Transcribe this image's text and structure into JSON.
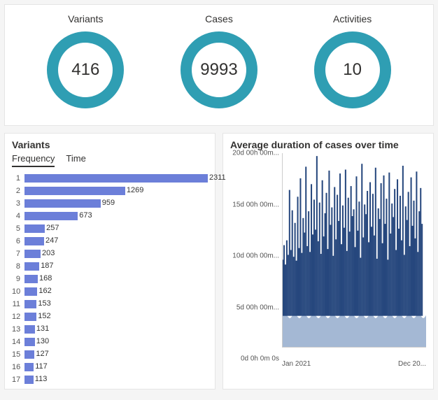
{
  "kpis": [
    {
      "label": "Variants",
      "value": "416",
      "ring_color": "#2f9eb3",
      "ring_width": 16
    },
    {
      "label": "Cases",
      "value": "9993",
      "ring_color": "#2f9eb3",
      "ring_width": 16
    },
    {
      "label": "Activities",
      "value": "10",
      "ring_color": "#2f9eb3",
      "ring_width": 16
    }
  ],
  "variants_panel": {
    "title": "Variants",
    "tabs": [
      {
        "label": "Frequency",
        "active": true
      },
      {
        "label": "Time",
        "active": false
      }
    ],
    "bar_color": "#6c7fd9",
    "max_value": 2311,
    "rows": [
      {
        "idx": "1",
        "value": 2311
      },
      {
        "idx": "2",
        "value": 1269
      },
      {
        "idx": "3",
        "value": 959
      },
      {
        "idx": "4",
        "value": 673
      },
      {
        "idx": "5",
        "value": 257
      },
      {
        "idx": "6",
        "value": 247
      },
      {
        "idx": "7",
        "value": 203
      },
      {
        "idx": "8",
        "value": 187
      },
      {
        "idx": "9",
        "value": 168
      },
      {
        "idx": "10",
        "value": 162
      },
      {
        "idx": "11",
        "value": 153
      },
      {
        "idx": "12",
        "value": 152
      },
      {
        "idx": "13",
        "value": 131
      },
      {
        "idx": "14",
        "value": 130
      },
      {
        "idx": "15",
        "value": 127
      },
      {
        "idx": "16",
        "value": 117
      },
      {
        "idx": "17",
        "value": 113
      }
    ]
  },
  "duration_panel": {
    "title": "Average duration of cases over time",
    "y_ticks": [
      {
        "label": "20d 00h 00m...",
        "pos": 0.0
      },
      {
        "label": "15d 00h 00m...",
        "pos": 0.25
      },
      {
        "label": "10d 00h 00m...",
        "pos": 0.5
      },
      {
        "label": "5d 00h 00m...",
        "pos": 0.75
      },
      {
        "label": "0d 0h 0m 0s",
        "pos": 1.0
      }
    ],
    "x_ticks": [
      "Jan 2021",
      "Dec 20..."
    ],
    "fill_color": "#26477d",
    "light_color": "#a4b8d4",
    "series_top": [
      9.0,
      10.5,
      8.5,
      11.0,
      9.5,
      16.2,
      10.0,
      14.1,
      9.3,
      12.8,
      8.9,
      15.5,
      10.2,
      17.4,
      9.7,
      13.3,
      11.8,
      18.6,
      10.4,
      14.0,
      9.8,
      16.8,
      11.6,
      15.2,
      12.1,
      19.7,
      10.9,
      14.9,
      9.6,
      17.2,
      11.4,
      13.8,
      15.9,
      10.1,
      18.2,
      12.6,
      14.4,
      9.4,
      16.5,
      11.1,
      15.7,
      13.0,
      17.9,
      10.6,
      14.6,
      12.3,
      18.3,
      9.9,
      15.4,
      11.9,
      16.6,
      13.5,
      14.2,
      10.3,
      17.6,
      12.0,
      15.0,
      9.2,
      18.9,
      11.3,
      14.7,
      13.7,
      16.1,
      10.8,
      17.0,
      12.4,
      15.8,
      11.5,
      18.5,
      9.1,
      14.3,
      13.2,
      16.9,
      10.7,
      17.7,
      12.7,
      15.3,
      9.0,
      18.0,
      11.7,
      14.8,
      13.4,
      16.3,
      10.0,
      17.3,
      12.2,
      15.6,
      11.0,
      18.7,
      9.5,
      14.5,
      13.1,
      16.0,
      10.4,
      17.5,
      12.5,
      15.1,
      11.2,
      18.1,
      9.8,
      14.0,
      16.4,
      12.7,
      0.3,
      0.2,
      0.3
    ],
    "series_low": 3.2,
    "y_max": 20
  }
}
